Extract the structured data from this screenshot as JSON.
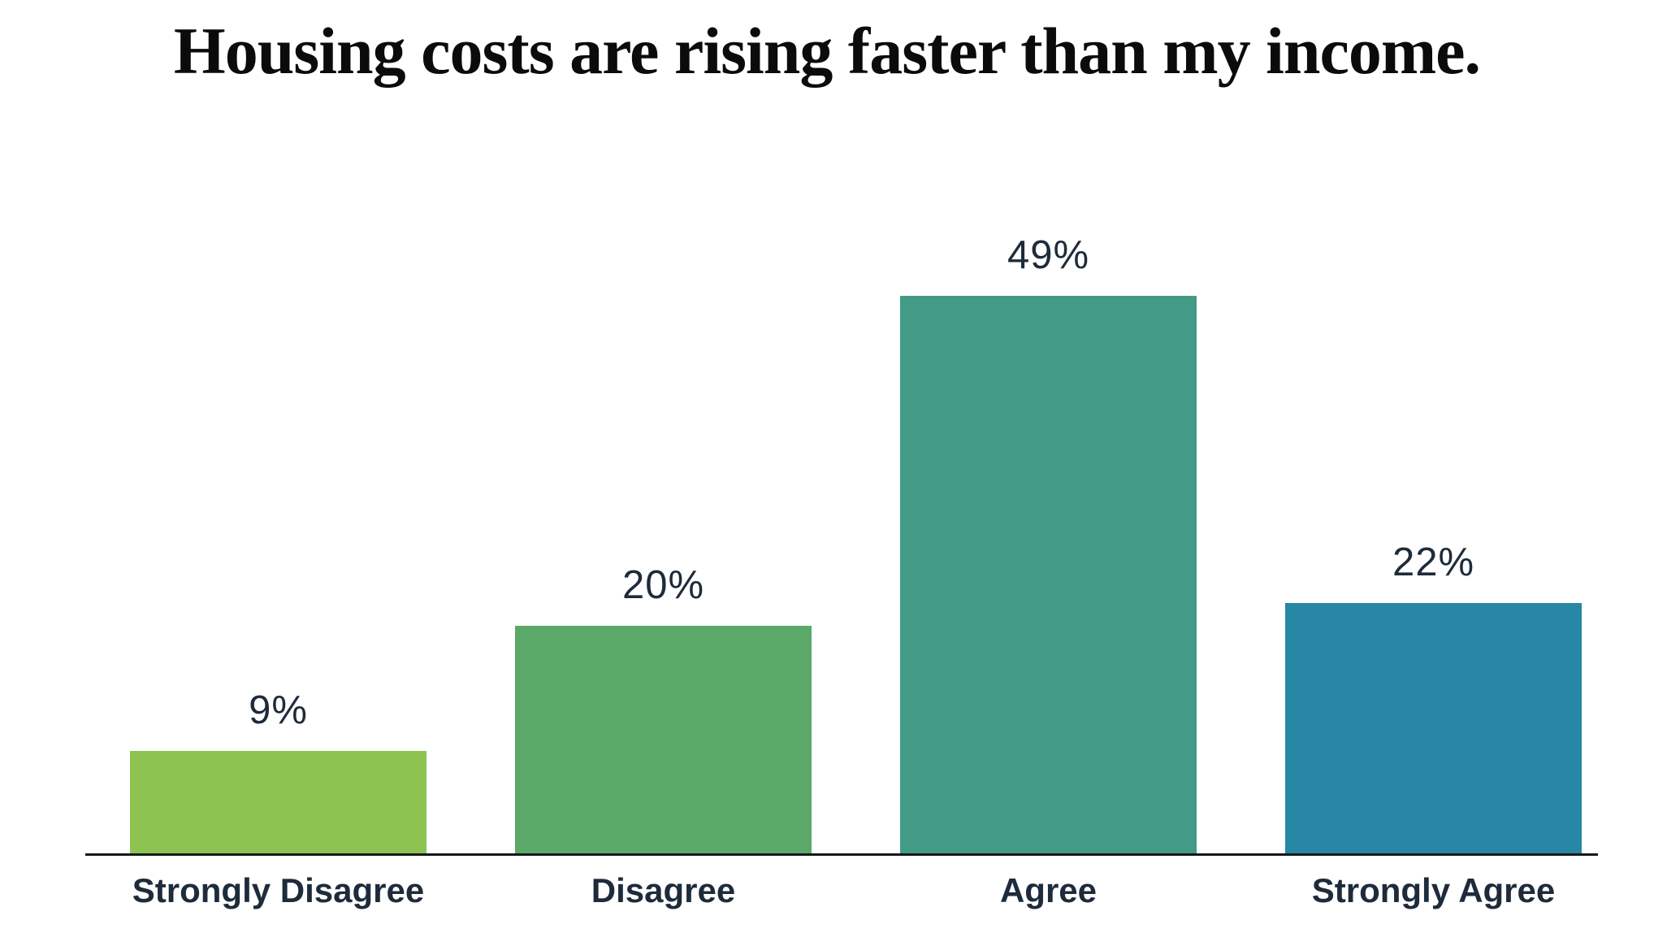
{
  "title": "Housing costs are rising faster than my income.",
  "chart_data": {
    "type": "bar",
    "title": "Housing costs are rising faster than my income.",
    "categories": [
      "Strongly Disagree",
      "Disagree",
      "Agree",
      "Strongly Agree"
    ],
    "values": [
      9,
      20,
      49,
      22
    ],
    "value_labels": [
      "9%",
      "20%",
      "49%",
      "22%"
    ],
    "bar_colors": [
      "#8dc351",
      "#5ba969",
      "#439a86",
      "#2787a5"
    ],
    "xlabel": "",
    "ylabel": "",
    "ylim": [
      0,
      50
    ],
    "grid": false,
    "legend": "none",
    "value_label_color": "#1e2b3b",
    "category_label_color": "#1e2b3b",
    "axis_line_color": "#15181c",
    "background_color": "#ffffff"
  }
}
